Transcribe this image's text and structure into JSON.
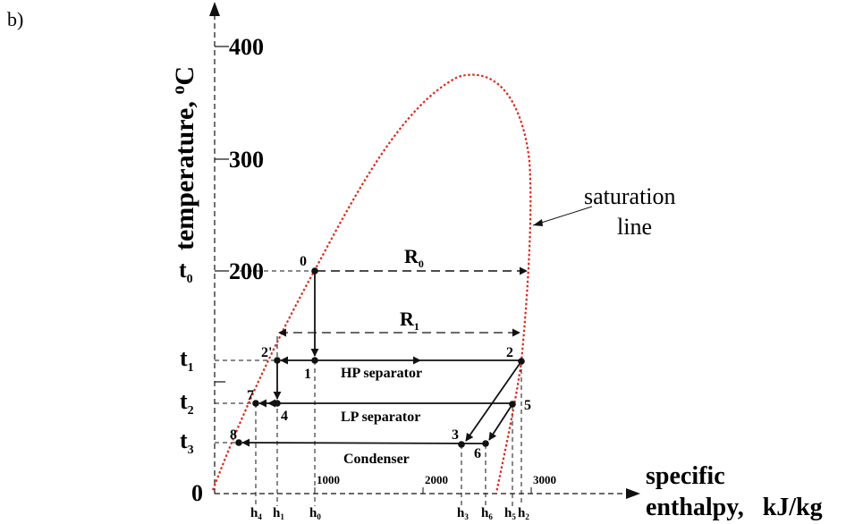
{
  "panel_label": "b)",
  "axes": {
    "y_label": "temperature, ",
    "y_unit_sup": "o",
    "y_unit": "C",
    "x_label_line1": "specific",
    "x_label_line2": "enthalpy,   kJ/kg",
    "origin": "0",
    "y_ticks": [
      "200",
      "300",
      "400"
    ],
    "x_ticks": [
      "1000",
      "2000",
      "3000"
    ]
  },
  "temperature_levels": [
    {
      "symbol": "t",
      "sub": "0"
    },
    {
      "symbol": "t",
      "sub": "1"
    },
    {
      "symbol": "t",
      "sub": "2"
    },
    {
      "symbol": "t",
      "sub": "3"
    }
  ],
  "enthalpy_marks": [
    {
      "symbol": "h",
      "sub": "4"
    },
    {
      "symbol": "h",
      "sub": "1"
    },
    {
      "symbol": "h",
      "sub": "0"
    },
    {
      "symbol": "h",
      "sub": "3"
    },
    {
      "symbol": "h",
      "sub": "6"
    },
    {
      "symbol": "h",
      "sub": "5"
    },
    {
      "symbol": "h",
      "sub": "2"
    }
  ],
  "points": [
    "0",
    "1",
    "2'",
    "2",
    "7",
    "4",
    "5",
    "3",
    "6",
    "8"
  ],
  "processes": {
    "hp": "HP separator",
    "lp": "LP separator",
    "cond": "Condenser"
  },
  "latent_heat": [
    {
      "symbol": "R",
      "sub": "0"
    },
    {
      "symbol": "R",
      "sub": "1"
    }
  ],
  "saturation_line": {
    "line1": "saturation",
    "line2": "line",
    "color": "#e0261a"
  },
  "colors": {
    "ink": "#111111",
    "saturation": "#e0261a"
  }
}
